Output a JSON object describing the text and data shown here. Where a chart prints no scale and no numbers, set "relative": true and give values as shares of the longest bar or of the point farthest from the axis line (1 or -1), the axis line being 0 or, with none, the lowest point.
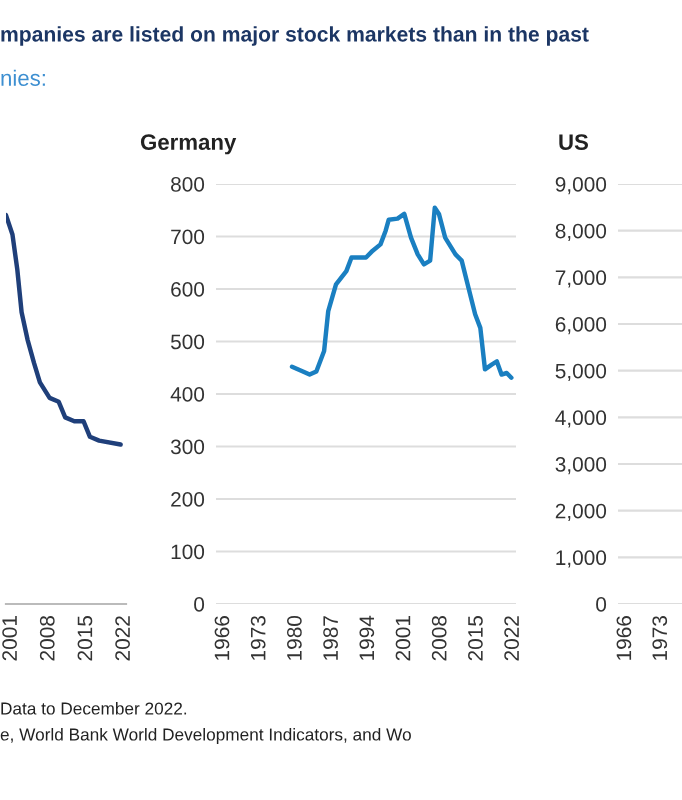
{
  "chart_data": [
    {
      "type": "line",
      "title": "mpanies are listed on major stock markets than in the past",
      "subtitle": "nies:",
      "annotations": [
        "Data to December 2022.",
        "e, World Bank World Development Indicators, and Wo"
      ],
      "relative": true,
      "xlim": [
        2000,
        2022.3
      ],
      "xticks": [
        2001,
        2008,
        2015,
        2022
      ],
      "series": [
        {
          "color": "#1f3f7a",
          "x": [
            2000,
            2001.2,
            2002.1,
            2002.9,
            2004.0,
            2005.2,
            2006.3,
            2008.1,
            2009.8,
            2011.0,
            2012.7,
            2014.4,
            2015.6,
            2017.3,
            2021.3
          ],
          "values": [
            1.0,
            0.95,
            0.86,
            0.75,
            0.68,
            0.62,
            0.57,
            0.53,
            0.52,
            0.48,
            0.47,
            0.47,
            0.43,
            0.42,
            0.41
          ]
        }
      ]
    },
    {
      "type": "line",
      "title": "Germany",
      "xlim": [
        1964.5,
        2022.5
      ],
      "xticks": [
        1966,
        1973,
        1980,
        1987,
        1994,
        2001,
        2008,
        2015,
        2022
      ],
      "ylim": [
        0,
        800
      ],
      "yticks": [
        0,
        100,
        200,
        300,
        400,
        500,
        600,
        700,
        800
      ],
      "grid": "y",
      "series": [
        {
          "color": "#1a7fc1",
          "x": [
            1979.2,
            1981.3,
            1982.6,
            1983.9,
            1985.4,
            1986.2,
            1987.7,
            1989.7,
            1990.7,
            1992.5,
            1993.5,
            1994.8,
            1996.3,
            1997.3,
            1997.9,
            1999.6,
            2000.9,
            2002.2,
            2003.5,
            2004.7,
            2005.9,
            2006.8,
            2007.6,
            2008.8,
            2010.8,
            2012.0,
            2013.3,
            2014.6,
            2015.6,
            2016.5,
            2017.8,
            2018.8,
            2019.7,
            2020.7,
            2021.6
          ],
          "values": [
            452,
            443,
            437,
            443,
            482,
            558,
            609,
            634,
            660,
            660,
            660,
            673,
            685,
            711,
            732,
            734,
            743,
            698,
            666,
            647,
            654,
            755,
            743,
            698,
            666,
            654,
            603,
            552,
            526,
            447,
            456,
            462,
            437,
            440,
            431
          ]
        }
      ]
    },
    {
      "type": "line",
      "title": "US",
      "xlim": [
        1964.5,
        1977
      ],
      "xticks": [
        1966,
        1973
      ],
      "ylim": [
        0,
        9000
      ],
      "yticks": [
        0,
        {
          "value": 1000,
          "label": "1,000"
        },
        {
          "value": 2000,
          "label": "2,000"
        },
        {
          "value": 3000,
          "label": "3,000"
        },
        {
          "value": 4000,
          "label": "4,000"
        },
        {
          "value": 5000,
          "label": "5,000"
        },
        {
          "value": 6000,
          "label": "6,000"
        },
        {
          "value": 7000,
          "label": "7,000"
        },
        {
          "value": 8000,
          "label": "8,000"
        },
        {
          "value": 9000,
          "label": "9,000"
        }
      ],
      "grid": "y"
    }
  ]
}
